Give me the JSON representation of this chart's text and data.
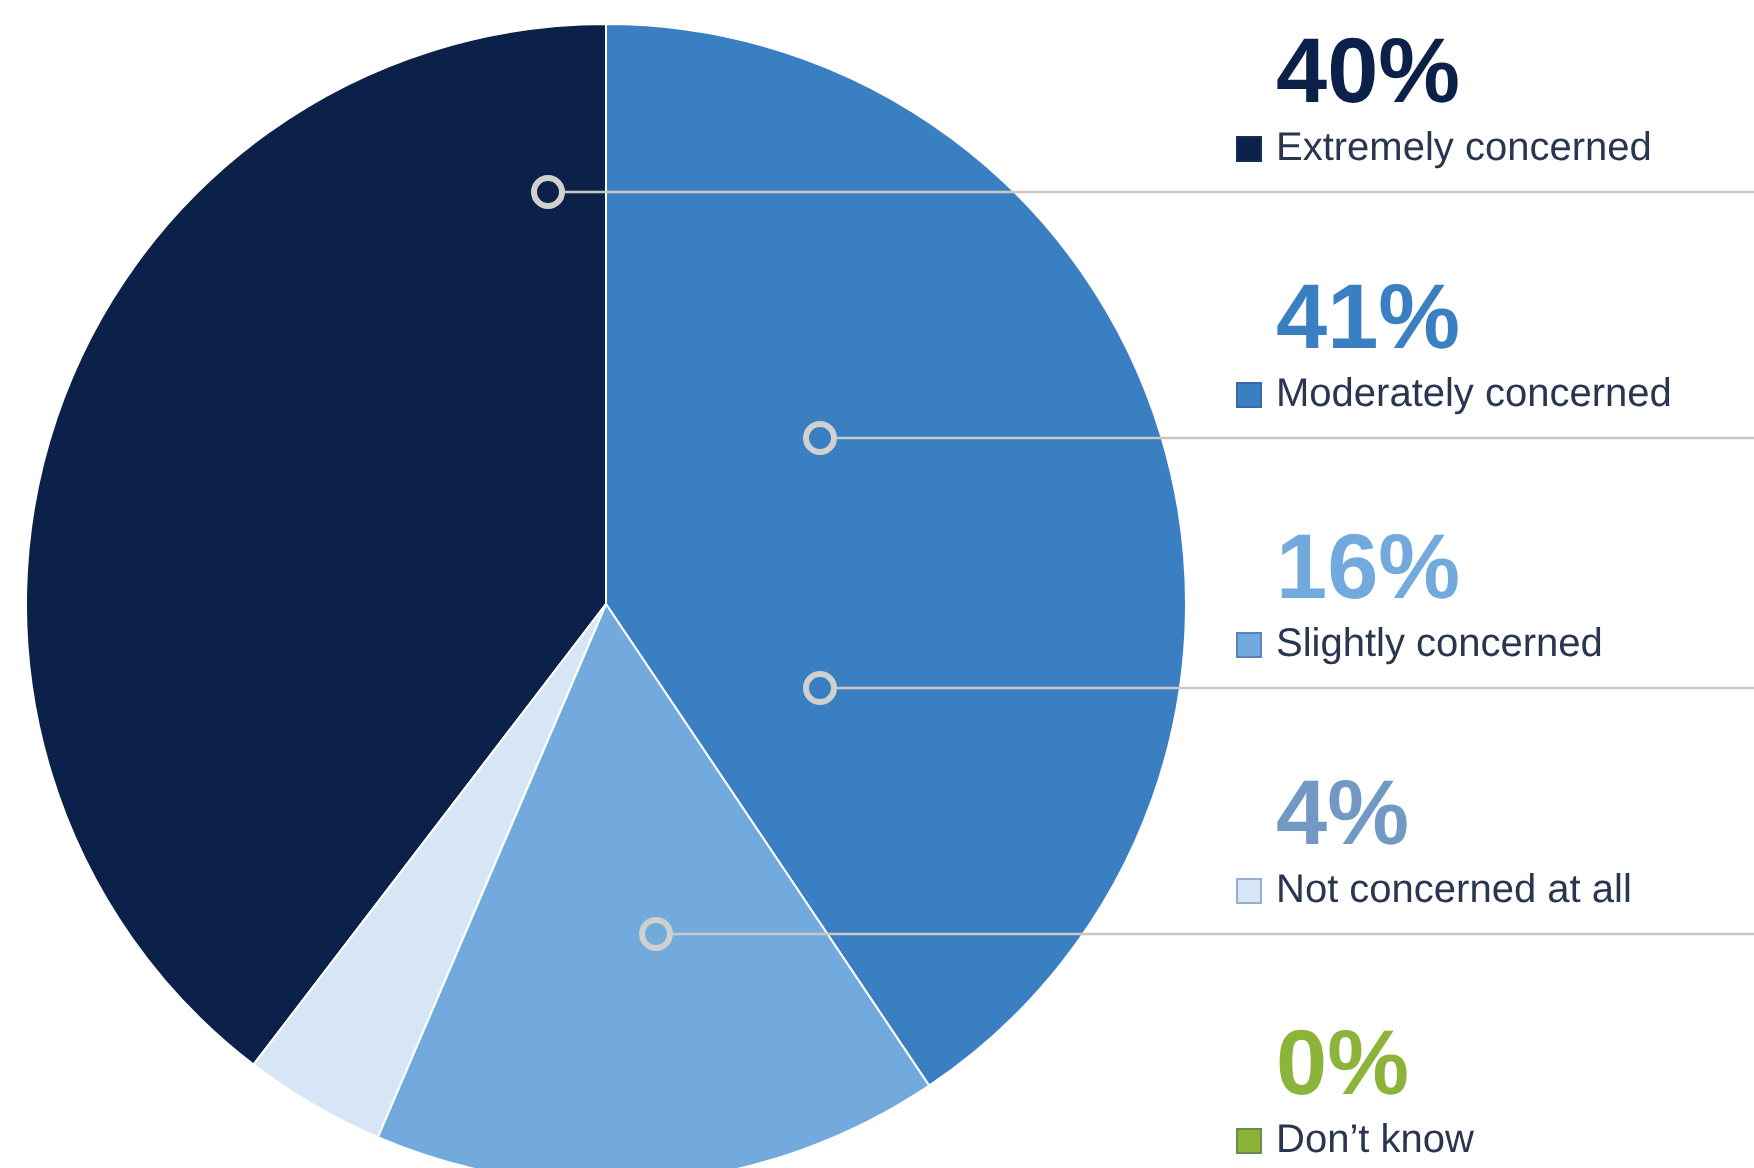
{
  "chart_data": {
    "type": "pie",
    "categories": [
      "Extremely concerned",
      "Moderately concerned",
      "Slightly concerned",
      "Not concerned at all",
      "Don’t know"
    ],
    "values": [
      40,
      41,
      16,
      4,
      0
    ],
    "value_labels": [
      "40%",
      "41%",
      "16%",
      "4%",
      "0%"
    ],
    "colors": [
      "#0b2149",
      "#3a7fc1",
      "#72aadd",
      "#d6e6f7",
      "#8cb33a"
    ],
    "legend": "right"
  }
}
